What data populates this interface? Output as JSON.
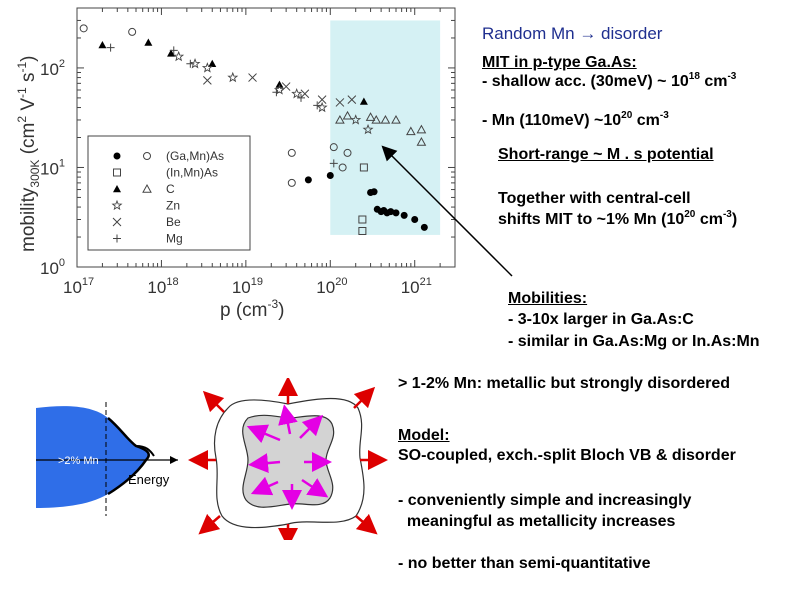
{
  "chart_data": {
    "type": "scatter",
    "xlabel_base": "p (cm",
    "xlabel_exp": "-3",
    "xlabel_close": ")",
    "ylabel_main": "mobility",
    "ylabel_sub": "300K",
    "ylabel_units": " (cm",
    "ylabel_units_sup1": "2",
    "ylabel_units_mid": " V",
    "ylabel_units_sup2": "-1",
    "ylabel_units_mid2": " s",
    "ylabel_units_sup3": "-1",
    "ylabel_units_close": ")",
    "x_log_range": [
      1e+17,
      3e+21
    ],
    "y_log_range": [
      1,
      400
    ],
    "x_ticks": [
      {
        "value": 1e+17,
        "base": "10",
        "exp": "17"
      },
      {
        "value": 1e+18,
        "base": "10",
        "exp": "18"
      },
      {
        "value": 1e+19,
        "base": "10",
        "exp": "19"
      },
      {
        "value": 1e+20,
        "base": "10",
        "exp": "20"
      },
      {
        "value": 1e+21,
        "base": "10",
        "exp": "21"
      }
    ],
    "y_ticks": [
      {
        "value": 1,
        "base": "10",
        "exp": "0"
      },
      {
        "value": 10,
        "base": "10",
        "exp": "1"
      },
      {
        "value": 100,
        "base": "10",
        "exp": "2"
      }
    ],
    "highlight_region": {
      "x": [
        1e+20,
        2e+21
      ],
      "y": [
        2.1,
        300
      ],
      "color": "#d5f1f4"
    },
    "legend": {
      "placement": "left-middle",
      "entries": [
        {
          "label": "(Ga,Mn)As",
          "markers": [
            "filled-circle",
            "open-circle"
          ]
        },
        {
          "label": "(In,Mn)As",
          "markers": [
            "open-square"
          ]
        },
        {
          "label": "C",
          "markers": [
            "filled-triangle",
            "open-triangle"
          ]
        },
        {
          "label": "Zn",
          "markers": [
            "star"
          ]
        },
        {
          "label": "Be",
          "markers": [
            "cross"
          ]
        },
        {
          "label": "Mg",
          "markers": [
            "plus"
          ]
        }
      ]
    },
    "series": [
      {
        "name": "(Ga,Mn)As",
        "marker": "filled-circle",
        "points": [
          [
            5.5e+19,
            7.5
          ],
          [
            1e+20,
            8.3
          ],
          [
            3e+20,
            5.6
          ],
          [
            3.3e+20,
            5.7
          ],
          [
            3.6e+20,
            3.8
          ],
          [
            4e+20,
            3.6
          ],
          [
            4.3e+20,
            3.7
          ],
          [
            4.7e+20,
            3.5
          ],
          [
            5.2e+20,
            3.6
          ],
          [
            6e+20,
            3.5
          ],
          [
            7.5e+20,
            3.3
          ],
          [
            1e+21,
            3.0
          ],
          [
            1.3e+21,
            2.5
          ]
        ]
      },
      {
        "name": "(Ga,Mn)As",
        "marker": "open-circle",
        "points": [
          [
            1.2e+17,
            250
          ],
          [
            4.5e+17,
            230
          ],
          [
            3.5e+19,
            14
          ],
          [
            3.5e+19,
            7
          ],
          [
            1.1e+20,
            16
          ],
          [
            1.6e+20,
            14
          ],
          [
            1.4e+20,
            10
          ]
        ]
      },
      {
        "name": "(In,Mn)As",
        "marker": "open-square",
        "points": [
          [
            2.5e+20,
            10
          ],
          [
            2.4e+20,
            3.0
          ],
          [
            2.4e+20,
            2.3
          ]
        ]
      },
      {
        "name": "C",
        "marker": "filled-triangle",
        "points": [
          [
            2e+17,
            170
          ],
          [
            7e+17,
            180
          ],
          [
            1.3e+18,
            140
          ],
          [
            4e+18,
            110
          ],
          [
            2.5e+19,
            68
          ],
          [
            2.5e+20,
            46
          ]
        ]
      },
      {
        "name": "C",
        "marker": "open-triangle",
        "points": [
          [
            1.3e+20,
            30
          ],
          [
            1.6e+20,
            33
          ],
          [
            3e+20,
            32
          ],
          [
            3.5e+20,
            30
          ],
          [
            4.5e+20,
            30
          ],
          [
            6e+20,
            30
          ],
          [
            9e+20,
            23
          ],
          [
            1.2e+21,
            24
          ],
          [
            1.2e+21,
            18
          ]
        ]
      },
      {
        "name": "Zn",
        "marker": "star",
        "points": [
          [
            1.6e+18,
            130
          ],
          [
            2.5e+18,
            110
          ],
          [
            3.5e+18,
            100
          ],
          [
            7e+18,
            80
          ],
          [
            2.5e+19,
            60
          ],
          [
            4e+19,
            55
          ],
          [
            8e+19,
            40
          ],
          [
            2e+20,
            30
          ],
          [
            2.8e+20,
            24
          ]
        ]
      },
      {
        "name": "Be",
        "marker": "cross",
        "points": [
          [
            3.5e+18,
            75
          ],
          [
            1.2e+19,
            80
          ],
          [
            3e+19,
            65
          ],
          [
            5e+19,
            55
          ],
          [
            8e+19,
            48
          ],
          [
            1.3e+20,
            45
          ],
          [
            1.8e+20,
            48
          ]
        ]
      },
      {
        "name": "Mg",
        "marker": "plus",
        "points": [
          [
            2.5e+17,
            160
          ],
          [
            1.4e+18,
            150
          ],
          [
            2.2e+18,
            110
          ],
          [
            2.3e+19,
            57
          ],
          [
            4.5e+19,
            50
          ],
          [
            7e+19,
            42
          ],
          [
            1.1e+20,
            11
          ]
        ]
      }
    ]
  },
  "annotations": {
    "title_left": "Random Mn ",
    "title_arrow": "→",
    "title_right": " disorder",
    "mit_heading": "MIT in p-type Ga.As:",
    "mit_shallow": "- shallow acc. (30meV) ~ 10",
    "mit_shallow_exp": "18",
    "mit_shallow_unit": " cm",
    "mit_shallow_unit_exp": "-3",
    "mit_mn": "- Mn (110meV) ~10",
    "mit_mn_exp": "20",
    "mit_mn_unit": " cm",
    "mit_mn_unit_exp": "-3",
    "short_range": "Short-range ~ M . s potential",
    "central_1": "Together with central-cell",
    "central_2": "shifts MIT to ~1% Mn (10",
    "central_2_exp": "20",
    "central_2_unit": " cm",
    "central_2_unit_exp": "-3",
    "central_2_close": ")",
    "mob_heading": "Mobilities:",
    "mob_1": "- 3-10x larger in Ga.As:C",
    "mob_2": "- similar in Ga.As:Mg or In.As:Mn",
    "metallic": "> 1-2% Mn: metallic but strongly disordered",
    "model_heading": "Model:",
    "model_1": "SO-coupled, exch.-split Bloch VB & disorder",
    "model_2a": "- conveniently simple and increasingly",
    "model_2b": "  meaningful as metallicity increases",
    "model_3": "- no better than semi-quantitative"
  },
  "band_diagram": {
    "fill_label": ">2% Mn",
    "axis_label": "Energy",
    "fill_color": "#2f6ee8"
  },
  "fermi_surface": {
    "inner_fill": "#d3d3d3",
    "inner_arrow_color": "#e400e4",
    "outer_arrow_color": "#dd0000"
  }
}
